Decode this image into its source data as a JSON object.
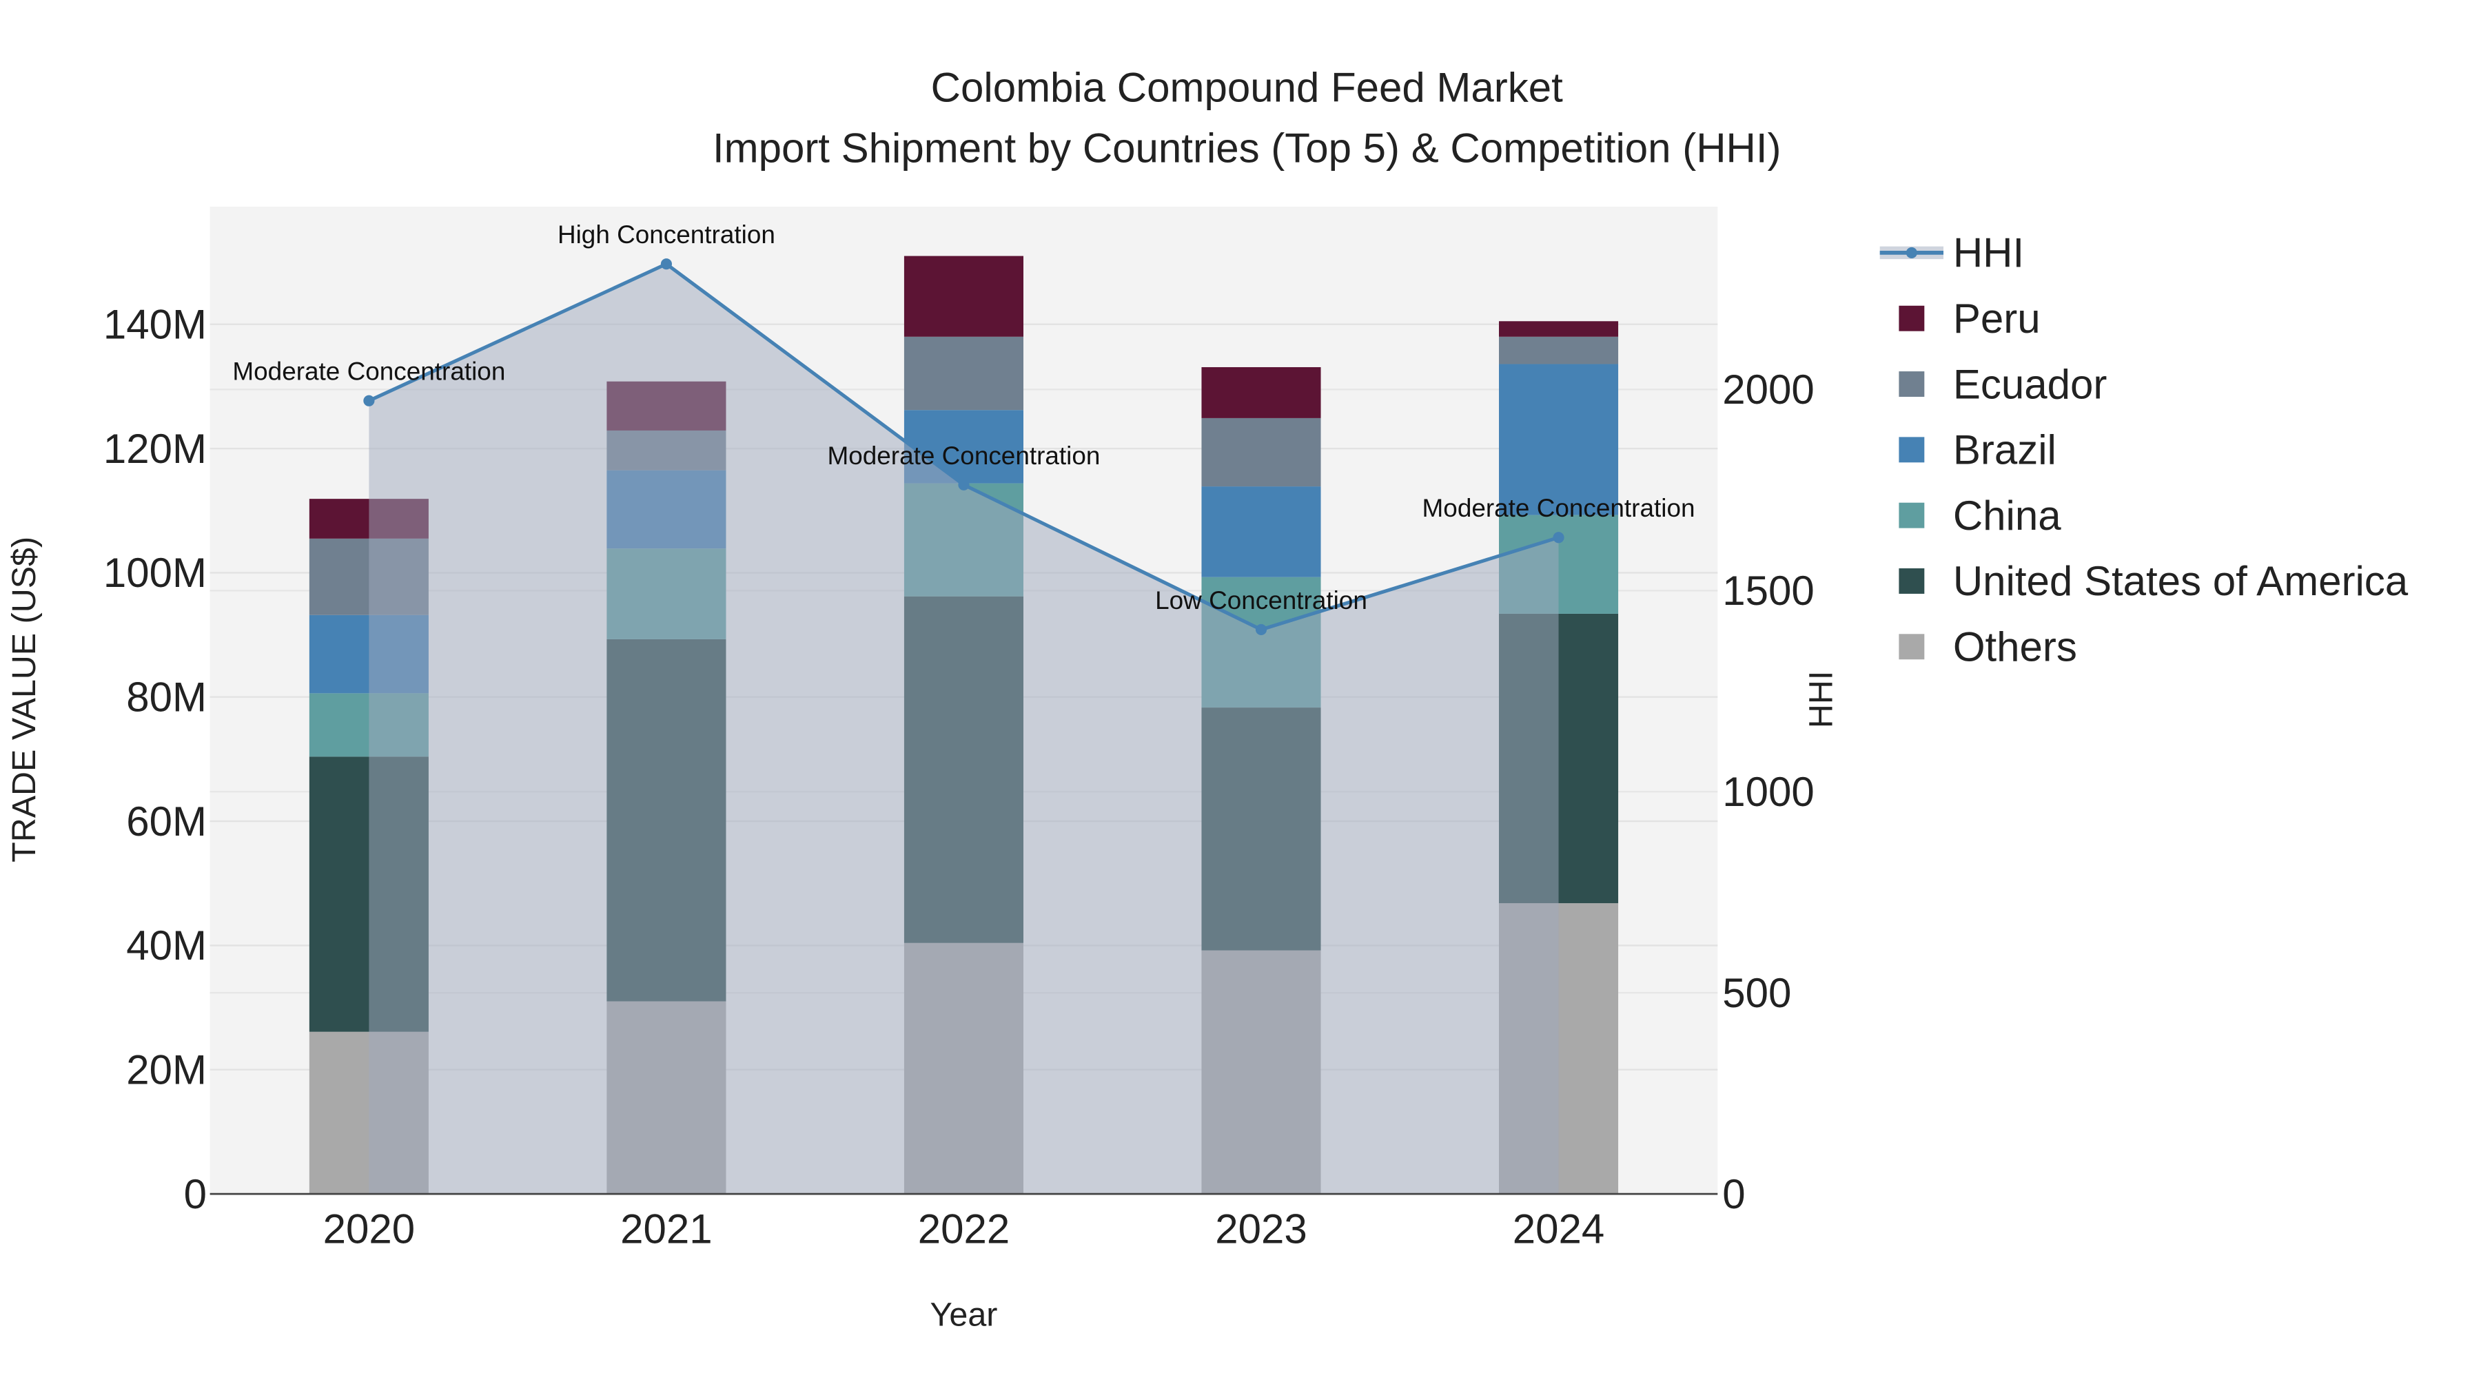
{
  "chart_data": {
    "type": "bar",
    "stacked": true,
    "title": "Colombia Compound Feed Market",
    "subtitle": "Import Shipment by Countries (Top 5) & Competition (HHI)",
    "xlabel": "Year",
    "ylabel": "TRADE VALUE (US$)",
    "y2label": "HHI",
    "categories": [
      "2020",
      "2021",
      "2022",
      "2023",
      "2024"
    ],
    "ylim": [
      0,
      158
    ],
    "yticks": [
      0,
      20,
      40,
      60,
      80,
      100,
      120,
      140
    ],
    "ytick_labels": [
      "0",
      "20M",
      "40M",
      "60M",
      "80M",
      "100M",
      "120M",
      "140M"
    ],
    "y2lim": [
      0,
      2455
    ],
    "y2ticks": [
      0,
      500,
      1000,
      1500,
      2000
    ],
    "y2tick_labels": [
      "0",
      "500",
      "1000",
      "1500",
      "2000"
    ],
    "value_unit": "million US$",
    "series": [
      {
        "name": "Others",
        "color": "#a9a9a9",
        "values": [
          26.1,
          31.0,
          40.4,
          39.2,
          46.8
        ]
      },
      {
        "name": "United States of America",
        "color": "#2f4f4f",
        "values": [
          44.3,
          58.3,
          55.8,
          39.1,
          46.6
        ]
      },
      {
        "name": "China",
        "color": "#5f9ea0",
        "values": [
          10.2,
          14.6,
          18.2,
          21.0,
          15.9
        ]
      },
      {
        "name": "Brazil",
        "color": "#4682b4",
        "values": [
          12.6,
          12.6,
          11.8,
          14.6,
          24.3
        ]
      },
      {
        "name": "Ecuador",
        "color": "#708090",
        "values": [
          12.3,
          6.4,
          11.8,
          11.0,
          4.4
        ]
      },
      {
        "name": "Peru",
        "color": "#5c1434",
        "values": [
          6.4,
          7.9,
          13.0,
          8.2,
          2.5
        ]
      }
    ],
    "hhi": {
      "name": "HHI",
      "color": "#4682b4",
      "values": [
        1972,
        2312,
        1763,
        1403,
        1632
      ],
      "annotations": [
        "Moderate Concentration",
        "High Concentration",
        "Moderate Concentration",
        "Low Concentration",
        "Moderate Concentration"
      ]
    },
    "legend": [
      "HHI",
      "Peru",
      "Ecuador",
      "Brazil",
      "China",
      "United States of America",
      "Others"
    ],
    "legend_placement": "right",
    "grid": true
  }
}
